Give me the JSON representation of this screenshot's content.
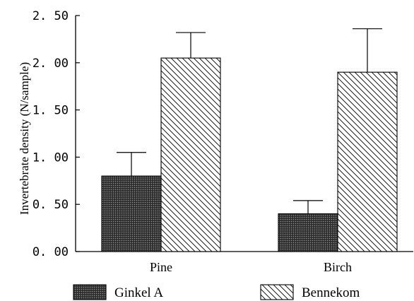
{
  "chart_data": {
    "type": "bar",
    "categories": [
      "Pine",
      "Birch"
    ],
    "series": [
      {
        "name": "Ginkel A",
        "values": [
          0.8,
          0.4
        ],
        "errors": [
          0.25,
          0.14
        ],
        "fill": "crosshatch-dark"
      },
      {
        "name": "Bennekom",
        "values": [
          2.05,
          1.9
        ],
        "errors": [
          0.27,
          0.46
        ],
        "fill": "diagonal-hatch"
      }
    ],
    "title": "",
    "xlabel": "",
    "ylabel": "Invertebrate density (N/sample)",
    "ylim": [
      0,
      2.5
    ],
    "yticks": [
      "0. 00",
      "0. 50",
      "1. 00",
      "1. 50",
      "2. 00",
      "2. 50"
    ],
    "grid": false,
    "legend_position": "bottom"
  }
}
